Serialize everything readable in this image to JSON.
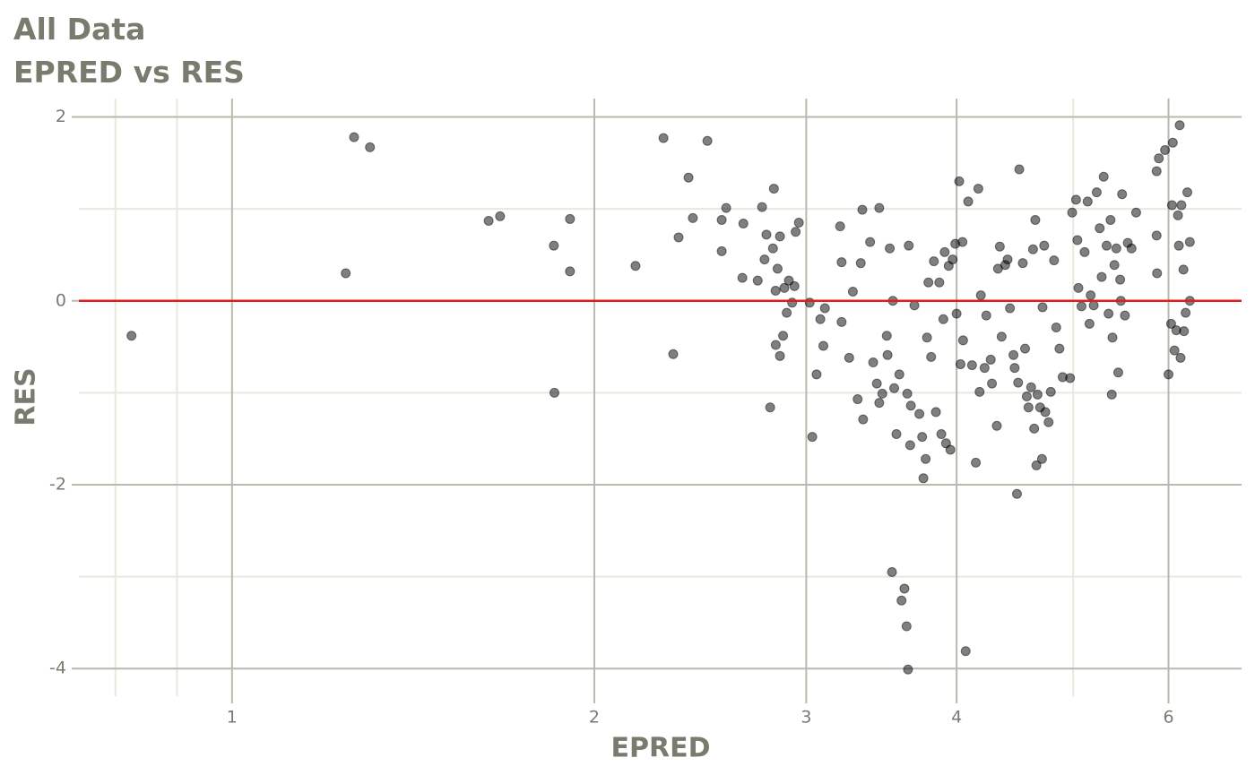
{
  "chart_data": {
    "type": "scatter",
    "title": "All Data",
    "subtitle": "EPRED vs RES",
    "x_label": "EPRED",
    "y_label": "RES",
    "xscale": "log",
    "grid": true,
    "xlim": [
      0.746,
      6.9
    ],
    "ylim": [
      -4.3,
      2.2
    ],
    "xticks": [
      1,
      2,
      3,
      4,
      6
    ],
    "yticks": [
      -4,
      -2,
      0,
      2
    ],
    "xminor": [
      0.8,
      0.9,
      5
    ],
    "yminor": [
      -3,
      -1,
      1
    ],
    "hline": 0,
    "hline_color": "#e41a1c",
    "color": "#000000",
    "alpha": 0.5,
    "x": [
      0.825,
      1.243,
      1.263,
      1.302,
      1.634,
      1.67,
      1.851,
      1.853,
      1.909,
      1.909,
      2.164,
      2.283,
      2.326,
      2.35,
      2.395,
      2.415,
      2.483,
      2.552,
      2.552,
      2.574,
      2.655,
      2.66,
      2.734,
      2.757,
      2.77,
      2.78,
      2.8,
      2.815,
      2.82,
      2.829,
      2.83,
      2.84,
      2.853,
      2.853,
      2.87,
      2.877,
      2.89,
      2.902,
      2.92,
      2.933,
      2.94,
      2.958,
      3.02,
      3.035,
      3.06,
      3.082,
      3.1,
      3.109,
      3.201,
      3.21,
      3.21,
      3.257,
      3.28,
      3.31,
      3.33,
      3.34,
      3.345,
      3.39,
      3.41,
      3.434,
      3.45,
      3.45,
      3.47,
      3.5,
      3.505,
      3.52,
      3.535,
      3.541,
      3.55,
      3.565,
      3.585,
      3.6,
      3.62,
      3.635,
      3.64,
      3.645,
      3.65,
      3.66,
      3.665,
      3.69,
      3.725,
      3.745,
      3.754,
      3.77,
      3.78,
      3.79,
      3.81,
      3.83,
      3.845,
      3.87,
      3.885,
      3.9,
      3.91,
      3.92,
      3.94,
      3.953,
      3.97,
      3.99,
      4.0,
      4.02,
      4.03,
      4.045,
      4.05,
      4.07,
      4.09,
      4.12,
      4.15,
      4.17,
      4.18,
      4.19,
      4.22,
      4.234,
      4.27,
      4.28,
      4.32,
      4.33,
      4.345,
      4.36,
      4.39,
      4.41,
      4.43,
      4.46,
      4.47,
      4.49,
      4.5,
      4.51,
      4.54,
      4.56,
      4.575,
      4.59,
      4.613,
      4.63,
      4.64,
      4.65,
      4.66,
      4.67,
      4.693,
      4.71,
      4.715,
      4.73,
      4.74,
      4.77,
      4.79,
      4.82,
      4.84,
      4.87,
      4.9,
      4.97,
      4.99,
      5.027,
      5.04,
      5.05,
      5.08,
      5.11,
      5.14,
      5.158,
      5.17,
      5.2,
      5.23,
      5.26,
      5.28,
      5.3,
      5.33,
      5.35,
      5.37,
      5.383,
      5.39,
      5.41,
      5.43,
      5.45,
      5.47,
      5.477,
      5.49,
      5.52,
      5.55,
      5.59,
      5.64,
      5.865,
      5.865,
      5.87,
      5.89,
      5.96,
      6.0,
      6.03,
      6.04,
      6.05,
      6.069,
      6.09,
      6.11,
      6.12,
      6.13,
      6.14,
      6.15,
      6.174,
      6.18,
      6.2,
      6.22,
      6.25,
      6.25
    ],
    "values": [
      -0.38,
      0.3,
      1.78,
      1.67,
      0.87,
      0.92,
      0.6,
      -1.0,
      0.89,
      0.32,
      0.38,
      1.77,
      -0.58,
      0.69,
      1.34,
      0.9,
      1.74,
      0.54,
      0.88,
      1.01,
      0.25,
      0.84,
      0.22,
      1.02,
      0.45,
      0.72,
      -1.16,
      0.57,
      1.22,
      0.11,
      -0.48,
      0.35,
      -0.6,
      0.7,
      -0.38,
      0.14,
      -0.13,
      0.22,
      -0.02,
      0.16,
      0.75,
      0.85,
      -0.02,
      -1.48,
      -0.8,
      -0.2,
      -0.49,
      -0.08,
      0.81,
      0.42,
      -0.23,
      -0.62,
      0.1,
      -1.07,
      0.41,
      0.99,
      -1.29,
      0.64,
      -0.67,
      -0.9,
      1.01,
      -1.11,
      -1.01,
      -0.38,
      -0.59,
      0.57,
      -2.95,
      0.0,
      -0.95,
      -1.45,
      -0.8,
      -3.26,
      -3.13,
      -3.54,
      -1.01,
      -4.01,
      0.6,
      -1.57,
      -1.14,
      -0.05,
      -1.23,
      -1.48,
      -1.93,
      -1.72,
      -0.4,
      0.2,
      -0.61,
      0.43,
      -1.21,
      0.2,
      -1.45,
      -0.2,
      0.53,
      -1.55,
      0.38,
      -1.62,
      0.45,
      0.62,
      -0.14,
      1.3,
      -0.69,
      0.64,
      -0.43,
      -3.81,
      1.08,
      -0.7,
      -1.76,
      1.22,
      -0.99,
      0.06,
      -0.73,
      -0.16,
      -0.64,
      -0.9,
      -1.36,
      0.35,
      0.59,
      -0.39,
      0.39,
      0.45,
      -0.08,
      -0.59,
      -0.73,
      -2.1,
      -0.89,
      1.43,
      0.41,
      -0.52,
      -1.04,
      -1.16,
      -0.94,
      0.56,
      -1.39,
      0.88,
      -1.79,
      -1.02,
      -1.16,
      -1.72,
      -0.07,
      0.6,
      -1.21,
      -1.32,
      -0.99,
      0.44,
      -0.29,
      -0.52,
      -0.83,
      -0.84,
      0.96,
      1.1,
      0.66,
      0.14,
      -0.06,
      0.53,
      1.08,
      -0.25,
      0.06,
      -0.05,
      1.18,
      0.79,
      0.26,
      1.35,
      0.6,
      -0.14,
      0.88,
      -1.02,
      -0.4,
      0.39,
      0.57,
      -0.78,
      0.23,
      0.0,
      1.16,
      -0.16,
      0.63,
      0.57,
      0.96,
      1.41,
      0.71,
      0.3,
      1.55,
      1.64,
      -0.8,
      -0.25,
      1.04,
      1.72,
      -0.54,
      -0.32,
      0.93,
      0.6,
      1.91,
      -0.62,
      1.04,
      0.34,
      -0.33,
      -0.13,
      1.18,
      0.64,
      0.0
    ]
  }
}
